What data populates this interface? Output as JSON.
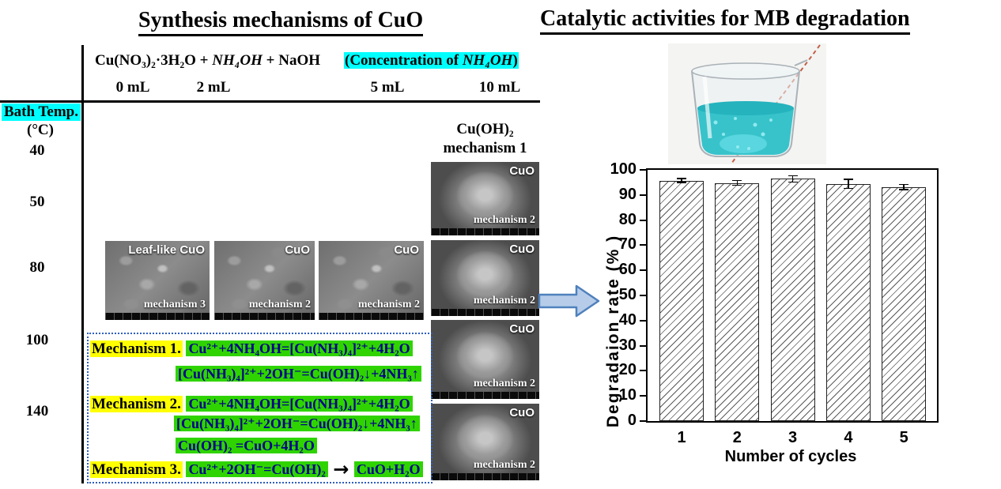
{
  "left_panel": {
    "title": "Synthesis mechanisms of CuO",
    "reaction": {
      "part1": "Cu(NO₃)₂·3H₂O + ",
      "reagent_italic": "NH₄OH",
      "part2": " + NaOH"
    },
    "concentration_note": {
      "open": "(",
      "label": "Concentration of ",
      "reagent_italic": "NH₄OH",
      "close": ")"
    },
    "volume_labels": [
      "0 mL",
      "2 mL",
      "5 mL",
      "10 mL"
    ],
    "bath_temp": {
      "label": "Bath Temp.",
      "unit": "(°C)",
      "values": [
        "40",
        "50",
        "80",
        "100",
        "140"
      ]
    },
    "column4_header": {
      "compound": "Cu(OH)₂",
      "mechanism": "mechanism 1"
    },
    "sem_images": [
      {
        "label": "Leaf-like CuO",
        "mechanism": "mechanism 3"
      },
      {
        "label": "CuO",
        "mechanism": "mechanism 2"
      },
      {
        "label": "CuO",
        "mechanism": "mechanism 2"
      },
      {
        "label": "CuO",
        "mechanism": "mechanism 2"
      },
      {
        "label": "CuO",
        "mechanism": "mechanism 2"
      },
      {
        "label": "CuO",
        "mechanism": "mechanism 2"
      },
      {
        "label": "CuO",
        "mechanism": "mechanism 2"
      }
    ],
    "mechanisms": [
      {
        "label": "Mechanism 1.",
        "lines": [
          "Cu²⁺+4NH₄OH=[Cu(NH₃)₄]²⁺+4H₂O",
          "[Cu(NH₃)₄]²⁺+2OH⁻=Cu(OH)₂↓+4NH₃↑"
        ]
      },
      {
        "label": "Mechanism 2.",
        "lines": [
          "Cu²⁺+4NH₄OH=[Cu(NH₃)₄]²⁺+4H₂O",
          "[Cu(NH₃)₄]²⁺+2OH⁻=Cu(OH)₂↓+4NH₃↑",
          "Cu(OH)₂ =CuO+4H₂O"
        ]
      },
      {
        "label": "Mechanism 3.",
        "eq_left": "Cu²⁺+2OH⁻=Cu(OH)₂",
        "arrow_glyph": "→",
        "eq_right": "CuO+H₂O"
      }
    ]
  },
  "right_panel": {
    "title": "Catalytic activities for MB degradation",
    "photo_caption": "beaker with methylene blue solution"
  },
  "chart_data": {
    "type": "bar",
    "categories": [
      "1",
      "2",
      "3",
      "4",
      "5"
    ],
    "values": [
      95.7,
      94.8,
      96.4,
      94.4,
      93.2
    ],
    "errors": [
      0.8,
      1.0,
      1.3,
      1.8,
      1.0
    ],
    "title": "",
    "xlabel": "Number of cycles",
    "ylabel": "Degradaion rate (% )",
    "ylim": [
      0,
      100
    ],
    "yticks": [
      0,
      10,
      20,
      30,
      40,
      50,
      60,
      70,
      80,
      90,
      100
    ],
    "legend": null,
    "grid": false,
    "frame": "box",
    "bar_style": "white fill, diagonal hatch, black edges, error bars"
  },
  "colors": {
    "highlight_cyan": "#00ffff",
    "highlight_yellow": "#ffff00",
    "highlight_green": "#2fd400",
    "equation_text_navy": "#00008b",
    "mechanism_box_border": "#2e5fbe",
    "flow_arrow_fill": "#b7cce9",
    "flow_arrow_stroke": "#4f81bd",
    "beaker_liquid": "#38c3cb",
    "dashed_line": "#c26149"
  }
}
